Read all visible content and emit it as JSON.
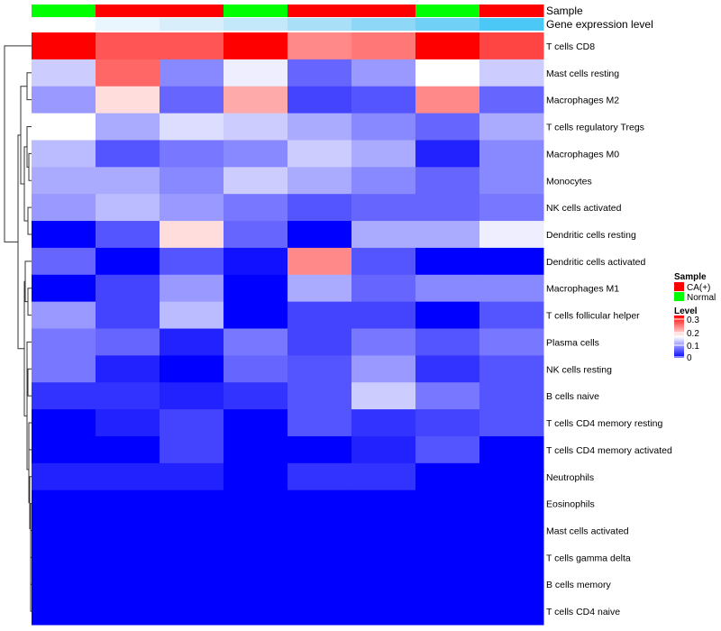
{
  "chart_data": {
    "type": "heatmap",
    "title": "",
    "columns": 8,
    "annotations": {
      "sample": {
        "label": "Sample",
        "values": [
          "Normal",
          "CA(+)",
          "CA(+)",
          "Normal",
          "CA(+)",
          "CA(+)",
          "Normal",
          "CA(+)"
        ],
        "colors": {
          "CA(+)": "#ff0000",
          "Normal": "#00ff00"
        }
      },
      "gene_expression": {
        "label": "Gene expression level",
        "colors": [
          "#ffffff",
          "#eaf6fd",
          "#d8eefb",
          "#c3e8fa",
          "#aadff8",
          "#8ed7f7",
          "#70d0f6",
          "#4bc8f5"
        ]
      }
    },
    "rows": [
      {
        "name": "T cells CD8",
        "values": [
          0.3,
          0.25,
          0.25,
          0.3,
          0.22,
          0.23,
          0.3,
          0.26
        ]
      },
      {
        "name": "Mast cells resting",
        "values": [
          0.12,
          0.24,
          0.08,
          0.14,
          0.06,
          0.09,
          0.15,
          0.12
        ]
      },
      {
        "name": "Macrophages M2",
        "values": [
          0.09,
          0.17,
          0.06,
          0.2,
          0.04,
          0.05,
          0.22,
          0.06
        ]
      },
      {
        "name": "T cells regulatory  Tregs",
        "values": [
          0.15,
          0.1,
          0.13,
          0.12,
          0.1,
          0.08,
          0.06,
          0.1
        ]
      },
      {
        "name": "Macrophages M0",
        "values": [
          0.11,
          0.05,
          0.07,
          0.08,
          0.12,
          0.1,
          0.02,
          0.08
        ]
      },
      {
        "name": "Monocytes",
        "values": [
          0.1,
          0.1,
          0.08,
          0.12,
          0.1,
          0.08,
          0.06,
          0.08
        ]
      },
      {
        "name": "NK cells activated",
        "values": [
          0.09,
          0.11,
          0.09,
          0.07,
          0.05,
          0.06,
          0.06,
          0.07
        ]
      },
      {
        "name": "Dendritic cells resting",
        "values": [
          0.0,
          0.05,
          0.17,
          0.06,
          0.0,
          0.1,
          0.1,
          0.14
        ]
      },
      {
        "name": "Dendritic cells activated",
        "values": [
          0.06,
          0.0,
          0.05,
          0.01,
          0.22,
          0.05,
          0.0,
          0.0
        ]
      },
      {
        "name": "Macrophages M1",
        "values": [
          0.0,
          0.04,
          0.09,
          0.0,
          0.1,
          0.06,
          0.08,
          0.08
        ]
      },
      {
        "name": "T cells follicular helper",
        "values": [
          0.09,
          0.04,
          0.11,
          0.0,
          0.04,
          0.04,
          0.0,
          0.05
        ]
      },
      {
        "name": "Plasma cells",
        "values": [
          0.07,
          0.06,
          0.02,
          0.07,
          0.04,
          0.07,
          0.05,
          0.07
        ]
      },
      {
        "name": "NK cells resting",
        "values": [
          0.07,
          0.02,
          0.0,
          0.06,
          0.05,
          0.09,
          0.03,
          0.05
        ]
      },
      {
        "name": "B cells naive",
        "values": [
          0.03,
          0.03,
          0.02,
          0.03,
          0.05,
          0.12,
          0.07,
          0.05
        ]
      },
      {
        "name": "T cells CD4 memory resting",
        "values": [
          0.0,
          0.02,
          0.04,
          0.0,
          0.05,
          0.03,
          0.04,
          0.05
        ]
      },
      {
        "name": "T cells CD4 memory activated",
        "values": [
          0.0,
          0.0,
          0.04,
          0.0,
          0.0,
          0.02,
          0.05,
          0.0
        ]
      },
      {
        "name": "Neutrophils",
        "values": [
          0.02,
          0.02,
          0.02,
          0.0,
          0.03,
          0.03,
          0.0,
          0.0
        ]
      },
      {
        "name": "Eosinophils",
        "values": [
          0,
          0,
          0,
          0,
          0,
          0,
          0,
          0
        ]
      },
      {
        "name": "Mast cells activated",
        "values": [
          0,
          0,
          0,
          0,
          0,
          0,
          0,
          0
        ]
      },
      {
        "name": "T cells gamma delta",
        "values": [
          0,
          0,
          0,
          0,
          0,
          0,
          0,
          0
        ]
      },
      {
        "name": "B cells memory",
        "values": [
          0,
          0,
          0,
          0,
          0,
          0,
          0,
          0
        ]
      },
      {
        "name": "T cells CD4 naive",
        "values": [
          0,
          0,
          0,
          0,
          0,
          0,
          0,
          0
        ]
      }
    ],
    "color_scale": {
      "low": "#0000ff",
      "mid": "#ffffff",
      "high": "#ff0000",
      "range": [
        0,
        0.3
      ]
    },
    "legend": {
      "sample_title": "Sample",
      "sample_entries": [
        "CA(+)",
        "Normal"
      ],
      "level_title": "Level",
      "level_ticks": [
        "0.3",
        "0.2",
        "0.1",
        "0"
      ],
      "placement": "right"
    }
  }
}
